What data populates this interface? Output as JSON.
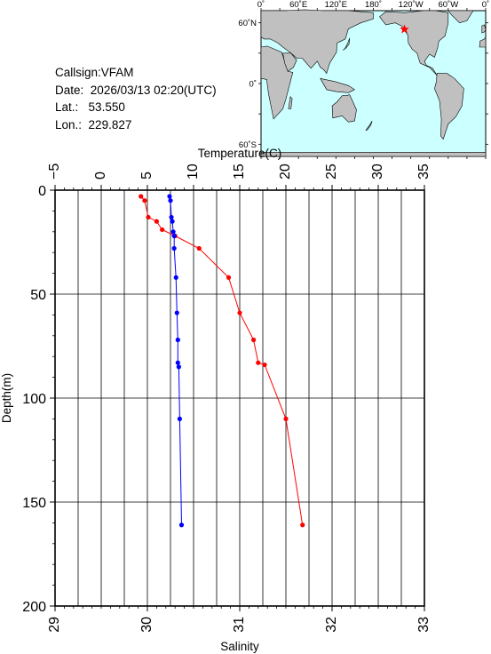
{
  "station": {
    "callsign_label": "Callsign:",
    "callsign": "VFAM",
    "date_label": "Date:",
    "date": "2026/03/13 02:20(UTC)",
    "lat_label": "Lat.:",
    "lat": "53.550",
    "lon_label": "Lon.:",
    "lon": "229.827"
  },
  "map": {
    "lon_ticks": [
      "0˚",
      "60˚E",
      "120˚E",
      "180˚",
      "120˚W",
      "60˚W",
      "0˚"
    ],
    "lat_ticks": [
      "60˚N",
      "0˚",
      "60˚S"
    ],
    "ocean_color": "#ccffff",
    "land_color": "#c0c0c0",
    "marker_color": "#ff0000",
    "marker": {
      "lon": 229.827,
      "lat": 53.55
    }
  },
  "chart_data": {
    "type": "line",
    "ylabel": "Depth(m)",
    "ylim": [
      0,
      200
    ],
    "y_ticks": [
      "0",
      "50",
      "100",
      "150",
      "200"
    ],
    "top_axis": {
      "label": "Temperature(C)",
      "range": [
        -5,
        35
      ],
      "ticks": [
        "−5",
        "0",
        "5",
        "10",
        "15",
        "20",
        "25",
        "30",
        "35"
      ]
    },
    "bottom_axis": {
      "label": "Salinity",
      "range": [
        29,
        33
      ],
      "ticks": [
        "29",
        "30",
        "31",
        "32",
        "33"
      ]
    },
    "grid": true,
    "series": [
      {
        "axis": "temperature",
        "color": "#ff0000",
        "points": [
          {
            "x": 4.3,
            "y": 3
          },
          {
            "x": 4.7,
            "y": 5
          },
          {
            "x": 5.1,
            "y": 13
          },
          {
            "x": 6.0,
            "y": 15
          },
          {
            "x": 6.6,
            "y": 19
          },
          {
            "x": 8.0,
            "y": 22
          },
          {
            "x": 10.6,
            "y": 28
          },
          {
            "x": 13.8,
            "y": 42
          },
          {
            "x": 15.0,
            "y": 59
          },
          {
            "x": 16.5,
            "y": 72
          },
          {
            "x": 17.0,
            "y": 83
          },
          {
            "x": 17.7,
            "y": 84
          },
          {
            "x": 20.0,
            "y": 110
          },
          {
            "x": 21.8,
            "y": 161
          }
        ]
      },
      {
        "axis": "salinity",
        "color": "#0000ff",
        "points": [
          {
            "x": 30.24,
            "y": 3
          },
          {
            "x": 30.25,
            "y": 5
          },
          {
            "x": 30.26,
            "y": 13
          },
          {
            "x": 30.27,
            "y": 15
          },
          {
            "x": 30.28,
            "y": 20
          },
          {
            "x": 30.29,
            "y": 22
          },
          {
            "x": 30.29,
            "y": 28
          },
          {
            "x": 30.31,
            "y": 42
          },
          {
            "x": 30.32,
            "y": 59
          },
          {
            "x": 30.33,
            "y": 72
          },
          {
            "x": 30.33,
            "y": 83
          },
          {
            "x": 30.34,
            "y": 85
          },
          {
            "x": 30.35,
            "y": 110
          },
          {
            "x": 30.37,
            "y": 161
          }
        ]
      }
    ]
  }
}
